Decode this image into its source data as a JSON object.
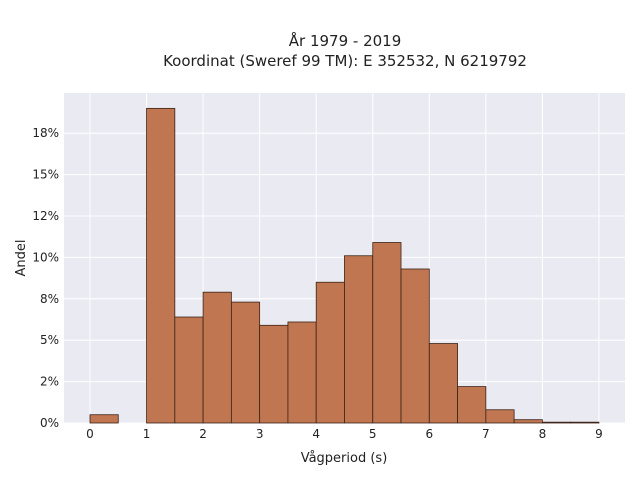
{
  "chart_data": {
    "type": "bar",
    "title": "År 1979 - 2019",
    "subtitle": "Koordinat (Sweref 99 TM): E 352532, N 6219792",
    "xlabel": "Vågperiod (s)",
    "ylabel": "Andel",
    "xlim": [
      -0.5,
      9.5
    ],
    "ylim": [
      0,
      20
    ],
    "x_ticks": [
      0,
      1,
      2,
      3,
      4,
      5,
      6,
      7,
      8,
      9
    ],
    "x_tick_labels": [
      "0",
      "1",
      "2",
      "3",
      "4",
      "5",
      "6",
      "7",
      "8",
      "9"
    ],
    "y_ticks": [
      0,
      2.5,
      5,
      7.5,
      10,
      12.5,
      15,
      17.5
    ],
    "y_tick_labels": [
      "0%",
      "2%",
      "5%",
      "8%",
      "10%",
      "12%",
      "15%",
      "18%"
    ],
    "bin_width": 0.5,
    "bins": [
      {
        "x0": 0.0,
        "x1": 0.5,
        "value": 0.5
      },
      {
        "x0": 1.0,
        "x1": 1.5,
        "value": 19.0
      },
      {
        "x0": 1.5,
        "x1": 2.0,
        "value": 6.4
      },
      {
        "x0": 2.0,
        "x1": 2.5,
        "value": 7.9
      },
      {
        "x0": 2.5,
        "x1": 3.0,
        "value": 7.3
      },
      {
        "x0": 3.0,
        "x1": 3.5,
        "value": 5.9
      },
      {
        "x0": 3.5,
        "x1": 4.0,
        "value": 6.1
      },
      {
        "x0": 4.0,
        "x1": 4.5,
        "value": 8.5
      },
      {
        "x0": 4.5,
        "x1": 5.0,
        "value": 10.1
      },
      {
        "x0": 5.0,
        "x1": 5.5,
        "value": 10.9
      },
      {
        "x0": 5.5,
        "x1": 6.0,
        "value": 9.3
      },
      {
        "x0": 6.0,
        "x1": 6.5,
        "value": 4.8
      },
      {
        "x0": 6.5,
        "x1": 7.0,
        "value": 2.2
      },
      {
        "x0": 7.0,
        "x1": 7.5,
        "value": 0.8
      },
      {
        "x0": 7.5,
        "x1": 8.0,
        "value": 0.2
      },
      {
        "x0": 8.0,
        "x1": 8.5,
        "value": 0.05
      },
      {
        "x0": 8.5,
        "x1": 9.0,
        "value": 0.05
      }
    ],
    "grid": true,
    "colors": {
      "bar_fill": "#c07651",
      "bar_edge": "#3b2418",
      "plot_background": "#eaeaf2",
      "grid": "#ffffff"
    }
  }
}
